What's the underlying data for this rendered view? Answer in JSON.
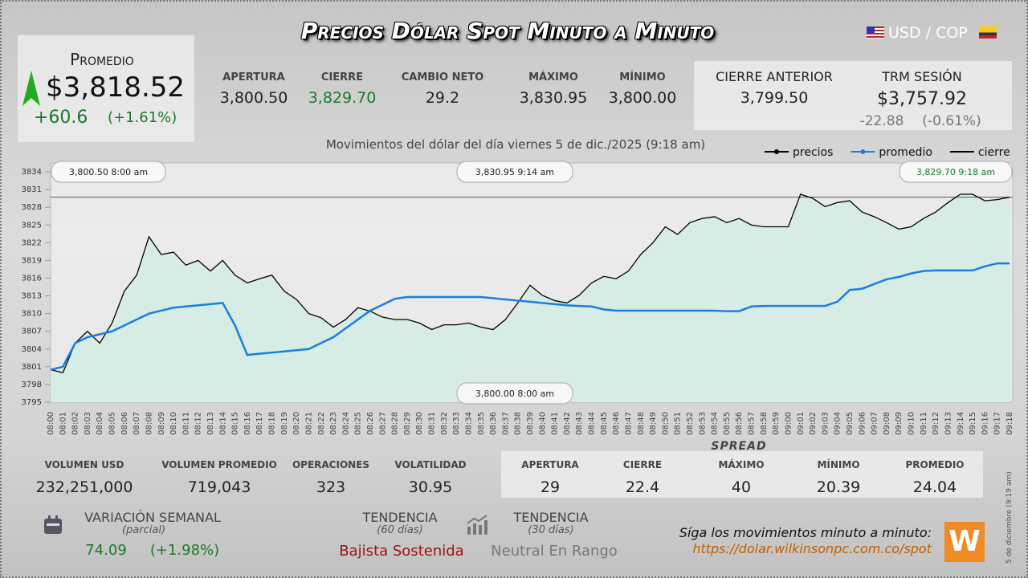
{
  "header": {
    "title": "Precios Dólar Spot Minuto a Minuto",
    "pair": "USD / COP"
  },
  "promedio": {
    "label": "Promedio",
    "value": "$3,818.52",
    "change": "+60.6",
    "change_pct": "(+1.61%)"
  },
  "stats": [
    {
      "label": "APERTURA",
      "value": "3,800.50"
    },
    {
      "label": "CIERRE",
      "value": "3,829.70"
    },
    {
      "label": "CAMBIO NETO",
      "value": "29.2"
    },
    {
      "label": "MÁXIMO",
      "value": "3,830.95"
    },
    {
      "label": "MÍNIMO",
      "value": "3,800.00"
    }
  ],
  "previous": [
    {
      "label": "CIERRE ANTERIOR",
      "value": "3,799.50"
    },
    {
      "label": "TRM SESIÓN",
      "value": "$3,757.92",
      "change": "-22.88",
      "change_pct": "(-0.61%)"
    }
  ],
  "chart_data": {
    "type": "line",
    "subtitle": "Movimientos del dólar del día viernes 5 de dic./2025 (9:18 am)",
    "categories": [
      "08:00",
      "08:01",
      "08:02",
      "08:03",
      "08:04",
      "08:05",
      "08:06",
      "08:07",
      "08:08",
      "08:09",
      "08:10",
      "08:11",
      "08:12",
      "08:13",
      "08:14",
      "08:15",
      "08:16",
      "08:17",
      "08:18",
      "08:19",
      "08:20",
      "08:21",
      "08:22",
      "08:23",
      "08:24",
      "08:25",
      "08:26",
      "08:27",
      "08:28",
      "08:29",
      "08:30",
      "08:31",
      "08:32",
      "08:33",
      "08:34",
      "08:35",
      "08:36",
      "08:37",
      "08:38",
      "08:39",
      "08:40",
      "08:41",
      "08:42",
      "08:43",
      "08:44",
      "08:45",
      "08:46",
      "08:47",
      "08:48",
      "08:49",
      "08:50",
      "08:51",
      "08:52",
      "08:53",
      "08:54",
      "08:55",
      "08:56",
      "08:57",
      "08:58",
      "08:59",
      "09:00",
      "09:01",
      "09:02",
      "09:03",
      "09:04",
      "09:05",
      "09:06",
      "09:07",
      "09:08",
      "09:09",
      "09:10",
      "09:11",
      "09:12",
      "09:13",
      "09:14",
      "09:15",
      "09:16",
      "09:17",
      "09:18"
    ],
    "series": [
      {
        "name": "precios",
        "color": "#000000",
        "values": [
          3800.5,
          3800,
          3805,
          3807,
          3805,
          3808.4,
          3813.8,
          3816.5,
          3823,
          3820,
          3820.4,
          3818.2,
          3819,
          3817.2,
          3819,
          3816.5,
          3815.2,
          3815.9,
          3816.5,
          3813.8,
          3812.4,
          3810,
          3809.3,
          3807.7,
          3809,
          3811,
          3810.4,
          3809.4,
          3809,
          3809,
          3808.4,
          3807.3,
          3808.1,
          3808.1,
          3808.4,
          3807.7,
          3807.3,
          3809,
          3811.8,
          3814.8,
          3813.1,
          3812.2,
          3811.8,
          3813.1,
          3815.2,
          3816.3,
          3815.9,
          3817.2,
          3820,
          3822,
          3824.7,
          3823.4,
          3825.4,
          3826.1,
          3826.4,
          3825.4,
          3826.1,
          3825,
          3824.7,
          3824.7,
          3824.7,
          3830.2,
          3829.5,
          3828.1,
          3828.8,
          3829.1,
          3827.2,
          3826.4,
          3825.4,
          3824.3,
          3824.7,
          3826.1,
          3827.2,
          3828.8,
          3830.2,
          3830.2,
          3829.1,
          3829.3,
          3829.7
        ]
      },
      {
        "name": "promedio",
        "color": "#1a7ee0",
        "values": [
          3800.5,
          3801,
          3805,
          3806,
          3806.5,
          3807,
          3808,
          3809,
          3810,
          3810.5,
          3811,
          3811.2,
          3811.4,
          3811.6,
          3811.8,
          3808,
          3803,
          3803.2,
          3803.4,
          3803.6,
          3803.8,
          3804,
          3805,
          3806,
          3807.5,
          3809,
          3810.5,
          3811.5,
          3812.5,
          3812.8,
          3812.8,
          3812.8,
          3812.8,
          3812.8,
          3812.8,
          3812.8,
          3812.6,
          3812.4,
          3812.2,
          3812,
          3811.8,
          3811.6,
          3811.4,
          3811.3,
          3811.2,
          3810.7,
          3810.5,
          3810.5,
          3810.5,
          3810.5,
          3810.5,
          3810.5,
          3810.5,
          3810.5,
          3810.5,
          3810.4,
          3810.4,
          3811.2,
          3811.3,
          3811.3,
          3811.3,
          3811.3,
          3811.3,
          3811.3,
          3812,
          3814,
          3814.2,
          3815,
          3815.8,
          3816.2,
          3816.8,
          3817.2,
          3817.3,
          3817.3,
          3817.3,
          3817.3,
          3818,
          3818.5,
          3818.5
        ]
      }
    ],
    "hline": {
      "name": "cierre",
      "value": 3829.7,
      "color": "#555555"
    },
    "fill_color": "#d6ece4",
    "ylim": [
      3795,
      3835.5
    ],
    "yticks": [
      3795,
      3798,
      3801,
      3804,
      3807,
      3810,
      3813,
      3816,
      3819,
      3822,
      3825,
      3828,
      3831,
      3834
    ],
    "annotations": [
      "3,800.50  8:00 am",
      "3,830.95  9:14 am",
      "3,829.70  9:18 am",
      "3,800.00  8:00 am"
    ],
    "legend": "top-right"
  },
  "volume": [
    {
      "label": "VOLUMEN USD",
      "value": "232,251,000"
    },
    {
      "label": "VOLUMEN PROMEDIO",
      "value": "719,043"
    },
    {
      "label": "OPERACIONES",
      "value": "323"
    },
    {
      "label": "VOLATILIDAD",
      "value": "30.95"
    }
  ],
  "spread": {
    "title": "SPREAD",
    "items": [
      {
        "label": "APERTURA",
        "value": "29"
      },
      {
        "label": "CIERRE",
        "value": "22.4"
      },
      {
        "label": "MÁXIMO",
        "value": "40"
      },
      {
        "label": "MÍNIMO",
        "value": "20.39"
      },
      {
        "label": "PROMEDIO",
        "value": "24.04"
      }
    ]
  },
  "weekly": {
    "label": "VARIACIÓN SEMANAL",
    "sub": "(parcial)",
    "value": "74.09",
    "pct": "(+1.98%)"
  },
  "trends": [
    {
      "label": "TENDENCIA",
      "sub": "(60 días)",
      "value": "Bajista Sostenida"
    },
    {
      "label": "TENDENCIA",
      "sub": "(30 días)",
      "value": "Neutral En Rango"
    }
  ],
  "footer": {
    "text": "Síga los movimientos minuto a minuto:",
    "url": "https://dolar.wilkinsonpc.com.co/spot",
    "logo": "W",
    "date": "5 de diciembre (9:19 am)"
  }
}
